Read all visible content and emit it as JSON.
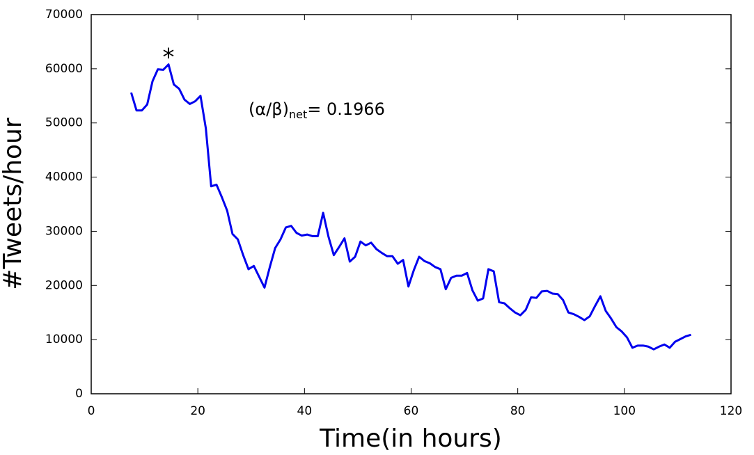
{
  "chart_data": {
    "type": "line",
    "x_label": "Time(in hours)",
    "y_label": "#Tweets/hour",
    "annotations": {
      "peak_marker": "*",
      "ratio_prefix": "(α/β)",
      "ratio_subscript": "net",
      "ratio_value": "= 0.1966"
    },
    "xlim": [
      0,
      120
    ],
    "xticks": [
      0,
      20,
      40,
      60,
      80,
      100,
      120
    ],
    "ylim": [
      0,
      70000
    ],
    "yticks": [
      0,
      10000,
      20000,
      30000,
      40000,
      50000,
      60000,
      70000
    ],
    "x": [
      7.5,
      8.5,
      9.5,
      10.5,
      11.5,
      12.5,
      13.5,
      14.5,
      15.5,
      16.5,
      17.5,
      18.5,
      19.5,
      20.5,
      21.5,
      22.5,
      23.5,
      24.5,
      25.5,
      26.5,
      27.5,
      28.5,
      29.5,
      30.5,
      31.5,
      32.5,
      33.5,
      34.5,
      35.5,
      36.5,
      37.5,
      38.5,
      39.5,
      40.5,
      41.5,
      42.5,
      43.5,
      44.5,
      45.5,
      46.5,
      47.5,
      48.5,
      49.5,
      50.5,
      51.5,
      52.5,
      53.5,
      54.5,
      55.5,
      56.5,
      57.5,
      58.5,
      59.5,
      60.5,
      61.5,
      62.5,
      63.5,
      64.5,
      65.5,
      66.5,
      67.5,
      68.5,
      69.5,
      70.5,
      71.5,
      72.5,
      73.5,
      74.5,
      75.5,
      76.5,
      77.5,
      78.5,
      79.5,
      80.5,
      81.5,
      82.5,
      83.5,
      84.5,
      85.5,
      86.5,
      87.5,
      88.5,
      89.5,
      90.5,
      91.5,
      92.5,
      93.5,
      94.5,
      95.5,
      96.5,
      97.5,
      98.5,
      99.5,
      100.5,
      101.5,
      102.5,
      103.5,
      104.5,
      105.5,
      106.5,
      107.5,
      108.5,
      109.5,
      110.5,
      111.5,
      112.5
    ],
    "series": [
      {
        "name": "Tweets per hour",
        "color": "#0000ee",
        "values": [
          55600,
          52300,
          52300,
          53400,
          57700,
          59900,
          59800,
          60800,
          57100,
          56300,
          54300,
          53500,
          54000,
          55000,
          49000,
          38300,
          38600,
          36300,
          33800,
          29500,
          28500,
          25600,
          23000,
          23600,
          21600,
          19600,
          23400,
          26900,
          28500,
          30700,
          31000,
          29700,
          29200,
          29400,
          29100,
          29100,
          33400,
          29000,
          25600,
          27100,
          28700,
          24400,
          25300,
          28100,
          27400,
          27900,
          26700,
          26000,
          25400,
          25400,
          24000,
          24700,
          19800,
          22800,
          25300,
          24500,
          24100,
          23400,
          23000,
          19300,
          21400,
          21800,
          21800,
          22300,
          19100,
          17200,
          17600,
          23000,
          22600,
          16900,
          16700,
          15800,
          15000,
          14500,
          15500,
          17800,
          17700,
          18900,
          19000,
          18500,
          18400,
          17300,
          15000,
          14700,
          14200,
          13600,
          14300,
          16200,
          18000,
          15300,
          13900,
          12300,
          11500,
          10400,
          8500,
          8900,
          8900,
          8700,
          8200,
          8700,
          9100,
          8500,
          9600,
          10100,
          10600,
          10900
        ]
      }
    ]
  }
}
